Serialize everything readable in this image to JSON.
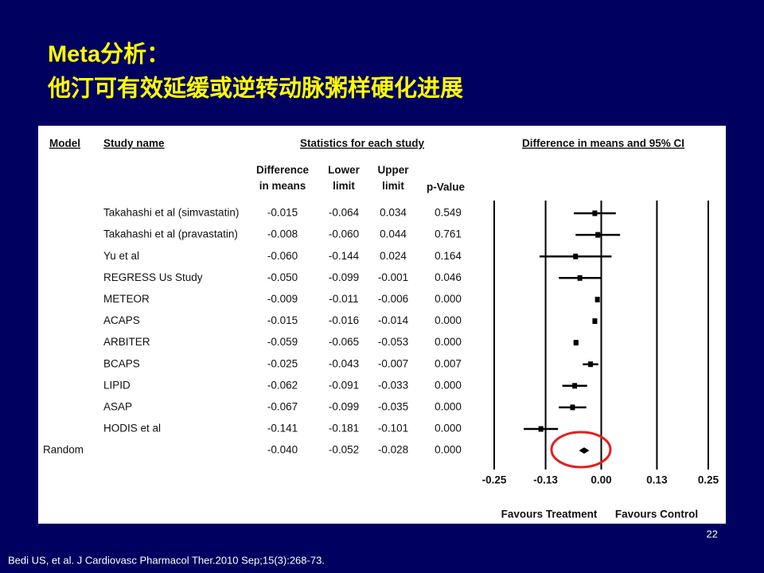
{
  "slide": {
    "title_line1": "Meta分析：",
    "title_line2": "他汀可有效延缓或逆转动脉粥样硬化进展",
    "page_number": "22",
    "citation": "Bedi US, et al.  J Cardiovasc Pharmacol Ther.2010 Sep;15(3):268-73."
  },
  "chart_data": {
    "type": "forest",
    "model_header": "Model",
    "study_header": "Study name",
    "stats_header": "Statistics for each study",
    "plot_header": "Difference in means and 95% CI",
    "p_header": "p-Value",
    "categories": [
      "Takahashi et al (simvastatin)",
      "Takahashi et al (pravastatin)",
      "Yu et al",
      "REGRESS Us Study",
      "METEOR",
      "ACAPS",
      "ARBITER",
      "BCAPS",
      "LIPID",
      "ASAP",
      "HODIS et al",
      null
    ],
    "model": [
      null,
      null,
      null,
      null,
      null,
      null,
      null,
      null,
      null,
      null,
      null,
      "Random"
    ],
    "series": [
      {
        "name": "Difference in means",
        "values": [
          -0.015,
          -0.008,
          -0.06,
          -0.05,
          -0.009,
          -0.015,
          -0.059,
          -0.025,
          -0.062,
          -0.067,
          -0.141,
          -0.04
        ],
        "value_labels": [
          "-0.015",
          "-0.008",
          "-0.060",
          "-0.050",
          "-0.009",
          "-0.015",
          "-0.059",
          "-0.025",
          "-0.062",
          "-0.067",
          "-0.141",
          "-0.040"
        ]
      },
      {
        "name": "Lower limit",
        "values": [
          -0.064,
          -0.06,
          -0.144,
          -0.099,
          -0.011,
          -0.016,
          -0.065,
          -0.043,
          -0.091,
          -0.099,
          -0.181,
          -0.052
        ],
        "value_labels": [
          "-0.064",
          "-0.060",
          "-0.144",
          "-0.099",
          "-0.011",
          "-0.016",
          "-0.065",
          "-0.043",
          "-0.091",
          "-0.099",
          "-0.181",
          "-0.052"
        ]
      },
      {
        "name": "Upper limit",
        "values": [
          0.034,
          0.044,
          0.024,
          -0.001,
          -0.006,
          -0.014,
          -0.053,
          -0.007,
          -0.033,
          -0.035,
          -0.101,
          -0.028
        ],
        "value_labels": [
          "0.034",
          "0.044",
          "0.024",
          "-0.001",
          "-0.006",
          "-0.014",
          "-0.053",
          "-0.007",
          "-0.033",
          "-0.035",
          "-0.101",
          "-0.028"
        ]
      }
    ],
    "p_values": [
      "0.549",
      "0.761",
      "0.164",
      "0.046",
      "0.000",
      "0.000",
      "0.000",
      "0.007",
      "0.000",
      "0.000",
      "0.000",
      "0.000"
    ],
    "xlim": [
      -0.25,
      0.25
    ],
    "xticks": [
      -0.25,
      -0.13,
      {
        "value": 0,
        "label": "0.00"
      },
      0.13,
      0.25
    ],
    "left_label": "Favours Treatment",
    "right_label": "Favours Control"
  }
}
